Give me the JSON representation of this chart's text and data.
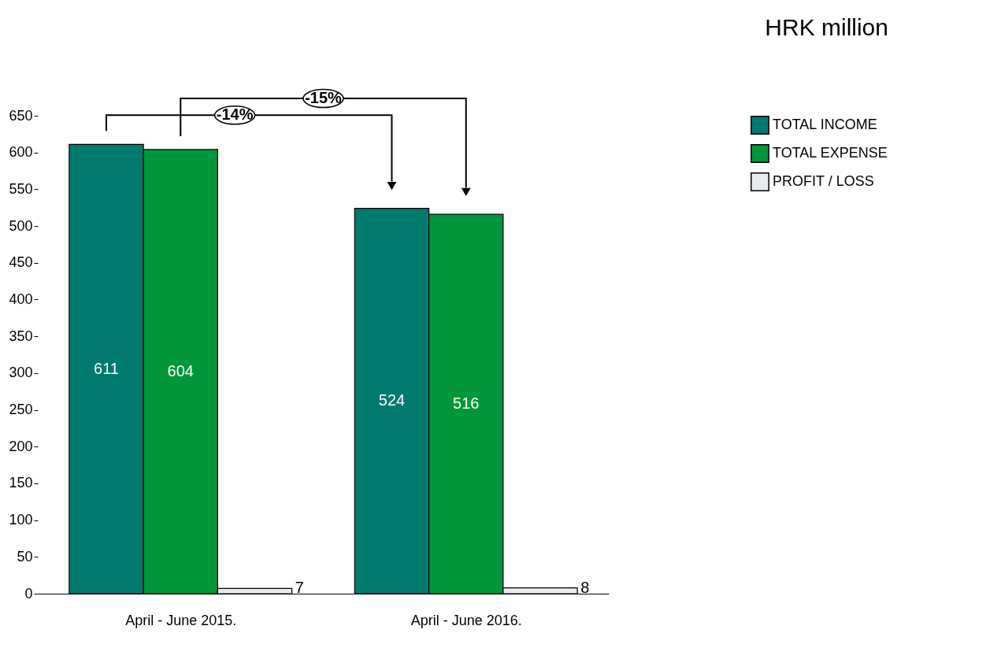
{
  "chart_data": {
    "type": "bar",
    "title": "HRK million",
    "categories": [
      "April - June 2015.",
      "April - June 2016."
    ],
    "series": [
      {
        "name": "TOTAL INCOME",
        "color": "#00796f",
        "values": [
          611,
          524
        ]
      },
      {
        "name": "TOTAL EXPENSE",
        "color": "#009639",
        "values": [
          604,
          516
        ]
      },
      {
        "name": "PROFIT / LOSS",
        "color": "#e8ecf0",
        "values": [
          7,
          8
        ]
      }
    ],
    "ylim": [
      0,
      650
    ],
    "yticks": [
      0,
      50,
      100,
      150,
      200,
      250,
      300,
      350,
      400,
      450,
      500,
      550,
      600,
      650
    ],
    "data_labels": true,
    "grid": false,
    "legend": "top right",
    "annotations": [
      "-14%",
      "-15%"
    ]
  }
}
